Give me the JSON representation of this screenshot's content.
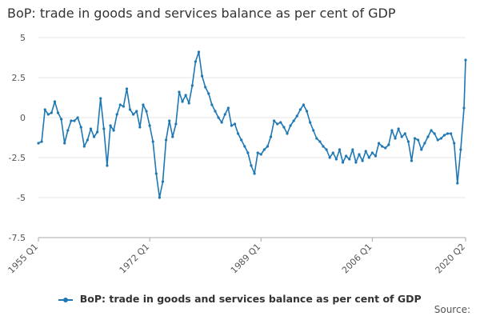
{
  "title": "BoP: trade in goods and services balance as per cent of GDP",
  "source_label": "Source:",
  "colors": {
    "series": "#1f78b4",
    "grid": "#e6e6e6",
    "axis": "#aaaaaa"
  },
  "chart_data": {
    "type": "line",
    "title": "BoP: trade in goods and services balance as per cent of GDP",
    "xlabel": "",
    "ylabel": "",
    "ylim": [
      -7.5,
      5
    ],
    "yticks": [
      5,
      2.5,
      0,
      -2.5,
      -5,
      -7.5
    ],
    "ytick_labels": [
      "5",
      "2.5",
      "0",
      "-2.5",
      "-5",
      "-7.5"
    ],
    "xlim": [
      1955.0,
      2020.25
    ],
    "xticks": [
      1955.0,
      1972.0,
      1989.0,
      2006.0,
      2020.25
    ],
    "xtick_labels": [
      "1955 Q1",
      "1972 Q1",
      "1989 Q1",
      "2006 Q1",
      "2020 Q2"
    ],
    "grid": true,
    "legend_position": "bottom",
    "series": [
      {
        "name": "BoP: trade in goods and services balance as per cent of GDP",
        "x": [
          1955.0,
          1955.5,
          1956.0,
          1956.5,
          1957.0,
          1957.5,
          1958.0,
          1958.5,
          1959.0,
          1959.5,
          1960.0,
          1960.5,
          1961.0,
          1961.5,
          1962.0,
          1962.5,
          1963.0,
          1963.5,
          1964.0,
          1964.5,
          1965.0,
          1965.5,
          1966.0,
          1966.5,
          1967.0,
          1967.5,
          1968.0,
          1968.5,
          1969.0,
          1969.5,
          1970.0,
          1970.5,
          1971.0,
          1971.5,
          1972.0,
          1972.5,
          1973.0,
          1973.5,
          1974.0,
          1974.5,
          1975.0,
          1975.5,
          1976.0,
          1976.5,
          1977.0,
          1977.5,
          1978.0,
          1978.5,
          1979.0,
          1979.5,
          1980.0,
          1980.5,
          1981.0,
          1981.5,
          1982.0,
          1982.5,
          1983.0,
          1983.5,
          1984.0,
          1984.5,
          1985.0,
          1985.5,
          1986.0,
          1986.5,
          1987.0,
          1987.5,
          1988.0,
          1988.5,
          1989.0,
          1989.5,
          1990.0,
          1990.5,
          1991.0,
          1991.5,
          1992.0,
          1992.5,
          1993.0,
          1993.5,
          1994.0,
          1994.5,
          1995.0,
          1995.5,
          1996.0,
          1996.5,
          1997.0,
          1997.5,
          1998.0,
          1998.5,
          1999.0,
          1999.5,
          2000.0,
          2000.5,
          2001.0,
          2001.5,
          2002.0,
          2002.5,
          2003.0,
          2003.5,
          2004.0,
          2004.5,
          2005.0,
          2005.5,
          2006.0,
          2006.5,
          2007.0,
          2007.5,
          2008.0,
          2008.5,
          2009.0,
          2009.5,
          2010.0,
          2010.5,
          2011.0,
          2011.5,
          2012.0,
          2012.5,
          2013.0,
          2013.5,
          2014.0,
          2014.5,
          2015.0,
          2015.5,
          2016.0,
          2016.5,
          2017.0,
          2017.5,
          2018.0,
          2018.5,
          2019.0,
          2019.5,
          2020.0,
          2020.25
        ],
        "y": [
          -1.6,
          -1.5,
          0.5,
          0.2,
          0.3,
          1.0,
          0.3,
          -0.1,
          -1.6,
          -0.8,
          -0.2,
          -0.2,
          0.0,
          -0.6,
          -1.8,
          -1.4,
          -0.7,
          -1.2,
          -0.9,
          1.2,
          -0.7,
          -3.0,
          -0.5,
          -0.8,
          0.2,
          0.8,
          0.7,
          1.8,
          0.5,
          0.2,
          0.4,
          -0.6,
          0.8,
          0.4,
          -0.5,
          -1.5,
          -3.5,
          -5.0,
          -4.0,
          -1.4,
          -0.2,
          -1.2,
          -0.4,
          1.6,
          1.0,
          1.4,
          0.9,
          2.0,
          3.5,
          4.1,
          2.6,
          1.9,
          1.5,
          0.8,
          0.4,
          0.0,
          -0.3,
          0.2,
          0.6,
          -0.5,
          -0.4,
          -1.0,
          -1.4,
          -1.8,
          -2.2,
          -3.0,
          -3.5,
          -2.2,
          -2.3,
          -2.0,
          -1.8,
          -1.2,
          -0.2,
          -0.4,
          -0.3,
          -0.6,
          -1.0,
          -0.5,
          -0.2,
          0.1,
          0.5,
          0.8,
          0.4,
          -0.3,
          -0.8,
          -1.3,
          -1.5,
          -1.8,
          -2.0,
          -2.5,
          -2.2,
          -2.6,
          -2.0,
          -2.8,
          -2.4,
          -2.6,
          -2.0,
          -2.8,
          -2.3,
          -2.7,
          -2.1,
          -2.5,
          -2.2,
          -2.4,
          -1.6,
          -1.8,
          -1.9,
          -1.7,
          -0.8,
          -1.3,
          -0.7,
          -1.2,
          -1.0,
          -1.5,
          -2.7,
          -1.3,
          -1.4,
          -2.0,
          -1.6,
          -1.2,
          -0.8,
          -1.0,
          -1.4,
          -1.3,
          -1.1,
          -1.0,
          -1.0,
          -1.6,
          -4.1,
          -2.0,
          0.6,
          3.6
        ]
      }
    ]
  }
}
